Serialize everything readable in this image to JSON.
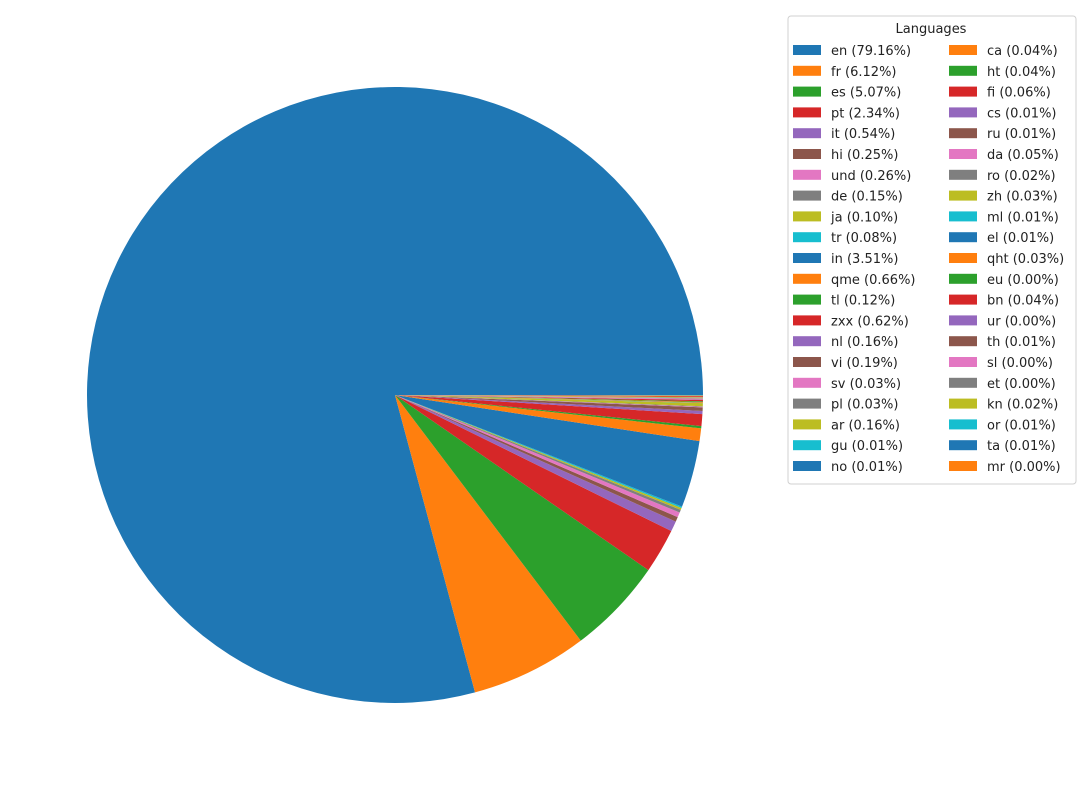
{
  "chart_data": {
    "type": "pie",
    "legend_title": "Languages",
    "legend_position": "top-right",
    "start_angle_deg": 0,
    "direction": "counterclockwise",
    "colors": [
      "#1f77b4",
      "#ff7f0e",
      "#2ca02c",
      "#d62728",
      "#9467bd",
      "#8c564b",
      "#e377c2",
      "#7f7f7f",
      "#bcbd22",
      "#17becf"
    ],
    "slices": [
      {
        "label": "en (79.16%)",
        "value": 79.16
      },
      {
        "label": "fr (6.12%)",
        "value": 6.12
      },
      {
        "label": "es (5.07%)",
        "value": 5.07
      },
      {
        "label": "pt (2.34%)",
        "value": 2.34
      },
      {
        "label": "it (0.54%)",
        "value": 0.54
      },
      {
        "label": "hi (0.25%)",
        "value": 0.25
      },
      {
        "label": "und (0.26%)",
        "value": 0.26
      },
      {
        "label": "de (0.15%)",
        "value": 0.15
      },
      {
        "label": "ja (0.10%)",
        "value": 0.1
      },
      {
        "label": "tr (0.08%)",
        "value": 0.08
      },
      {
        "label": "in (3.51%)",
        "value": 3.51
      },
      {
        "label": "qme (0.66%)",
        "value": 0.66
      },
      {
        "label": "tl (0.12%)",
        "value": 0.12
      },
      {
        "label": "zxx (0.62%)",
        "value": 0.62
      },
      {
        "label": "nl (0.16%)",
        "value": 0.16
      },
      {
        "label": "vi (0.19%)",
        "value": 0.19
      },
      {
        "label": "sv (0.03%)",
        "value": 0.03
      },
      {
        "label": "pl (0.03%)",
        "value": 0.03
      },
      {
        "label": "ar (0.16%)",
        "value": 0.16
      },
      {
        "label": "gu (0.01%)",
        "value": 0.01
      },
      {
        "label": "no (0.01%)",
        "value": 0.01
      },
      {
        "label": "ca (0.04%)",
        "value": 0.04
      },
      {
        "label": "ht (0.04%)",
        "value": 0.04
      },
      {
        "label": "fi (0.06%)",
        "value": 0.06
      },
      {
        "label": "cs (0.01%)",
        "value": 0.01
      },
      {
        "label": "ru (0.01%)",
        "value": 0.01
      },
      {
        "label": "da (0.05%)",
        "value": 0.05
      },
      {
        "label": "ro (0.02%)",
        "value": 0.02
      },
      {
        "label": "zh (0.03%)",
        "value": 0.03
      },
      {
        "label": "ml (0.01%)",
        "value": 0.01
      },
      {
        "label": "el (0.01%)",
        "value": 0.01
      },
      {
        "label": "qht (0.03%)",
        "value": 0.03
      },
      {
        "label": "eu (0.00%)",
        "value": 0.0
      },
      {
        "label": "bn (0.04%)",
        "value": 0.04
      },
      {
        "label": "ur (0.00%)",
        "value": 0.0
      },
      {
        "label": "th (0.01%)",
        "value": 0.01
      },
      {
        "label": "sl (0.00%)",
        "value": 0.0
      },
      {
        "label": "et (0.00%)",
        "value": 0.0
      },
      {
        "label": "kn (0.02%)",
        "value": 0.02
      },
      {
        "label": "or (0.01%)",
        "value": 0.01
      },
      {
        "label": "ta (0.01%)",
        "value": 0.01
      },
      {
        "label": "mr (0.00%)",
        "value": 0.0
      }
    ]
  }
}
